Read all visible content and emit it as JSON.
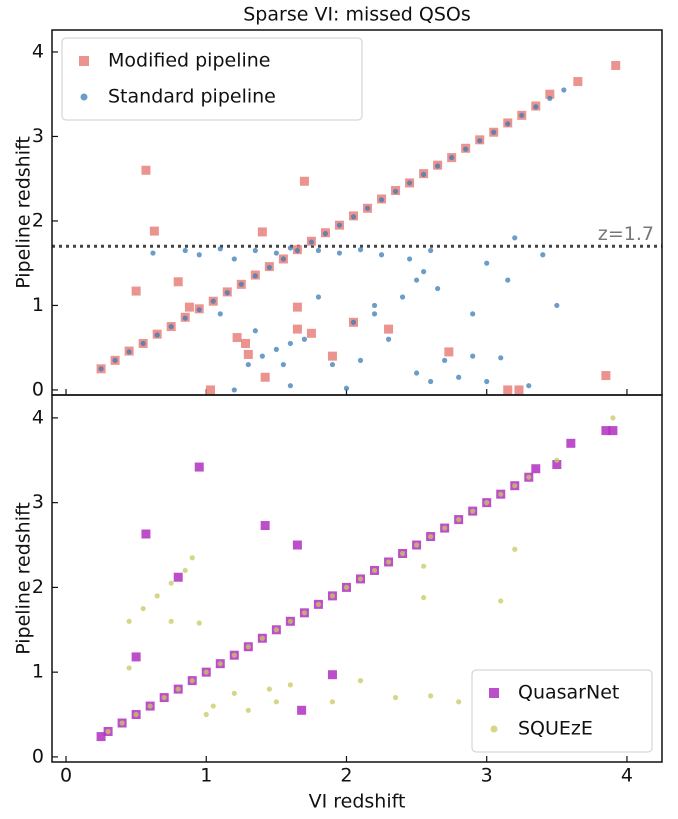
{
  "chart_data": [
    {
      "type": "scatter",
      "title": "Sparse VI: missed QSOs",
      "ylabel": "Pipeline redshift",
      "xlim": [
        -0.1,
        4.25
      ],
      "ylim": [
        -0.06,
        4.26
      ],
      "xticks": [
        0,
        1,
        2,
        3,
        4
      ],
      "yticks": [
        0,
        1,
        2,
        3,
        4
      ],
      "legend": "upper left",
      "hline": {
        "value": 1.7,
        "label": "z=1.7"
      },
      "series": [
        {
          "name": "Modified pipeline",
          "color": "#e8807a",
          "marker": "square",
          "x": [
            0.25,
            0.35,
            0.45,
            0.55,
            0.65,
            0.75,
            0.85,
            0.95,
            1.05,
            1.15,
            1.25,
            1.35,
            1.45,
            1.55,
            1.65,
            1.75,
            1.85,
            1.95,
            2.05,
            2.15,
            2.25,
            2.35,
            2.45,
            2.55,
            2.65,
            2.75,
            2.85,
            2.95,
            3.05,
            3.15,
            3.25,
            3.35,
            3.45,
            3.65,
            3.92,
            0.57,
            0.63,
            1.7,
            1.4,
            0.5,
            0.8,
            0.88,
            1.03,
            1.22,
            1.28,
            1.3,
            1.42,
            1.65,
            1.65,
            1.75,
            1.9,
            2.05,
            2.3,
            2.73,
            3.15,
            3.23,
            3.85
          ],
          "values": [
            0.25,
            0.35,
            0.46,
            0.55,
            0.66,
            0.75,
            0.86,
            0.96,
            1.05,
            1.16,
            1.25,
            1.36,
            1.46,
            1.55,
            1.66,
            1.76,
            1.86,
            1.95,
            2.06,
            2.15,
            2.26,
            2.36,
            2.45,
            2.56,
            2.66,
            2.75,
            2.86,
            2.96,
            3.05,
            3.16,
            3.25,
            3.36,
            3.5,
            3.65,
            3.84,
            2.6,
            1.88,
            2.47,
            1.87,
            1.17,
            1.28,
            0.98,
            0.0,
            0.62,
            0.55,
            0.42,
            0.15,
            0.98,
            0.72,
            0.67,
            0.4,
            0.8,
            0.72,
            0.45,
            0.0,
            0.0,
            0.17
          ]
        },
        {
          "name": "Standard pipeline",
          "color": "#3b7bb5",
          "marker": "circle",
          "x": [
            0.25,
            0.35,
            0.45,
            0.55,
            0.65,
            0.75,
            0.85,
            0.95,
            1.05,
            1.15,
            1.25,
            1.35,
            1.45,
            1.55,
            1.65,
            1.75,
            1.85,
            1.95,
            2.05,
            2.15,
            2.25,
            2.35,
            2.45,
            2.55,
            2.65,
            2.75,
            2.85,
            2.95,
            3.05,
            3.15,
            3.25,
            3.35,
            3.45,
            3.55,
            0.62,
            0.85,
            0.95,
            1.1,
            1.2,
            1.35,
            1.5,
            1.6,
            1.8,
            1.95,
            2.1,
            2.25,
            2.45,
            2.55,
            2.6,
            2.65,
            2.5,
            3.0,
            3.2,
            3.15,
            1.5,
            1.6,
            1.7,
            1.4,
            1.3,
            2.2,
            2.4,
            2.05,
            2.2,
            2.5,
            2.7,
            2.9,
            3.1,
            2.8,
            3.0,
            3.3,
            2.0,
            1.6,
            1.2,
            1.9,
            2.1,
            1.1,
            1.35,
            1.8,
            3.4,
            3.5,
            2.9,
            2.3,
            1.55,
            2.6
          ],
          "values": [
            0.25,
            0.35,
            0.45,
            0.55,
            0.65,
            0.75,
            0.85,
            0.95,
            1.05,
            1.15,
            1.25,
            1.35,
            1.45,
            1.55,
            1.65,
            1.75,
            1.85,
            1.95,
            2.05,
            2.15,
            2.25,
            2.35,
            2.45,
            2.55,
            2.65,
            2.75,
            2.85,
            2.95,
            3.05,
            3.15,
            3.25,
            3.35,
            3.45,
            3.55,
            1.62,
            1.65,
            1.6,
            1.67,
            1.55,
            1.65,
            1.62,
            1.68,
            1.65,
            1.62,
            1.66,
            1.6,
            1.55,
            1.4,
            1.65,
            1.2,
            1.3,
            1.5,
            1.8,
            1.3,
            0.48,
            0.55,
            0.6,
            0.4,
            0.3,
            1.0,
            1.1,
            0.8,
            0.9,
            0.2,
            0.35,
            0.4,
            0.38,
            0.15,
            0.1,
            0.05,
            0.02,
            0.05,
            0.0,
            0.3,
            0.35,
            0.9,
            0.7,
            1.1,
            1.6,
            1.0,
            0.9,
            0.6,
            0.3,
            0.1
          ]
        }
      ]
    },
    {
      "type": "scatter",
      "xlabel": "VI redshift",
      "ylabel": "Pipeline redshift",
      "xlim": [
        -0.1,
        4.25
      ],
      "ylim": [
        -0.06,
        4.27
      ],
      "xticks": [
        0,
        1,
        2,
        3,
        4
      ],
      "yticks": [
        0,
        1,
        2,
        3,
        4
      ],
      "legend": "lower right",
      "series": [
        {
          "name": "QuasarNet",
          "color": "#b030c0",
          "marker": "square",
          "x": [
            0.25,
            0.3,
            0.4,
            0.5,
            0.6,
            0.7,
            0.8,
            0.9,
            1.0,
            1.1,
            1.2,
            1.3,
            1.4,
            1.5,
            1.6,
            1.7,
            1.8,
            1.9,
            2.0,
            2.1,
            2.2,
            2.3,
            2.4,
            2.5,
            2.6,
            2.7,
            2.8,
            2.9,
            3.0,
            3.1,
            3.2,
            3.3,
            0.95,
            0.57,
            0.8,
            1.42,
            1.65,
            1.9,
            1.68,
            0.5,
            3.6,
            3.85,
            3.9,
            3.5,
            3.35
          ],
          "values": [
            0.24,
            0.3,
            0.4,
            0.5,
            0.6,
            0.7,
            0.8,
            0.9,
            1.0,
            1.1,
            1.2,
            1.3,
            1.4,
            1.5,
            1.6,
            1.7,
            1.8,
            1.9,
            2.0,
            2.1,
            2.2,
            2.3,
            2.4,
            2.5,
            2.6,
            2.7,
            2.8,
            2.9,
            3.0,
            3.1,
            3.2,
            3.3,
            3.42,
            2.63,
            2.12,
            2.73,
            2.5,
            0.97,
            0.55,
            1.18,
            3.7,
            3.85,
            3.85,
            3.45,
            3.4
          ]
        },
        {
          "name": "SQUEzE",
          "color": "#c8c860",
          "marker": "circle",
          "x": [
            0.3,
            0.4,
            0.5,
            0.6,
            0.7,
            0.8,
            0.9,
            1.0,
            1.1,
            1.2,
            1.3,
            1.4,
            1.5,
            1.6,
            1.7,
            1.8,
            1.9,
            2.0,
            2.1,
            2.2,
            2.3,
            2.4,
            2.5,
            2.6,
            2.7,
            2.8,
            2.9,
            3.0,
            3.1,
            3.2,
            3.3,
            3.5,
            3.9,
            0.45,
            0.55,
            0.65,
            0.75,
            0.85,
            0.9,
            0.45,
            0.75,
            0.95,
            2.55,
            2.55,
            3.1,
            3.2,
            1.05,
            1.2,
            1.3,
            1.45,
            1.6,
            1.9,
            2.1,
            2.35,
            2.6,
            2.8,
            3.0,
            1.0,
            1.5
          ],
          "values": [
            0.3,
            0.4,
            0.5,
            0.6,
            0.7,
            0.8,
            0.9,
            1.0,
            1.1,
            1.2,
            1.3,
            1.4,
            1.5,
            1.6,
            1.7,
            1.8,
            1.9,
            2.0,
            2.1,
            2.2,
            2.3,
            2.4,
            2.5,
            2.6,
            2.7,
            2.8,
            2.9,
            3.0,
            3.1,
            3.2,
            3.3,
            3.5,
            4.0,
            1.6,
            1.75,
            1.9,
            2.05,
            2.2,
            2.35,
            1.05,
            1.6,
            1.58,
            2.25,
            1.88,
            1.84,
            2.45,
            0.6,
            0.75,
            0.55,
            0.8,
            0.85,
            0.65,
            0.9,
            0.7,
            0.72,
            0.65,
            0.7,
            0.5,
            0.65
          ]
        }
      ]
    }
  ]
}
